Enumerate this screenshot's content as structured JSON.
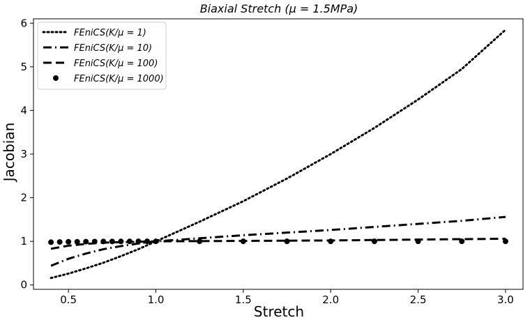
{
  "chart_data": {
    "type": "line",
    "title": "Biaxial Stretch (μ = 1.5MPa)",
    "xlabel": "Stretch",
    "ylabel": "Jacobian",
    "xlim": [
      0.3,
      3.1
    ],
    "ylim": [
      -0.1,
      6.1
    ],
    "xticks": [
      0.5,
      1.0,
      1.5,
      2.0,
      2.5,
      3.0
    ],
    "xtick_labels": [
      "0.5",
      "1.0",
      "1.5",
      "2.0",
      "2.5",
      "3.0"
    ],
    "yticks": [
      0,
      1,
      2,
      3,
      4,
      5,
      6
    ],
    "ytick_labels": [
      "0",
      "1",
      "2",
      "3",
      "4",
      "5",
      "6"
    ],
    "grid": false,
    "legend_position": "top-left",
    "series": [
      {
        "name": "FEniCS(K/μ = 1)",
        "style": "dotted",
        "x": [
          0.4,
          0.5,
          0.6,
          0.7,
          0.8,
          0.9,
          1.0,
          1.25,
          1.5,
          1.75,
          2.0,
          2.25,
          2.5,
          2.75,
          3.0
        ],
        "y": [
          0.16,
          0.26,
          0.38,
          0.51,
          0.66,
          0.82,
          1.0,
          1.45,
          1.92,
          2.44,
          3.0,
          3.6,
          4.25,
          4.95,
          5.85
        ]
      },
      {
        "name": "FEniCS(K/μ = 10)",
        "style": "dashdot",
        "x": [
          0.4,
          0.5,
          0.6,
          0.7,
          0.8,
          0.9,
          1.0,
          1.25,
          1.5,
          1.75,
          2.0,
          2.25,
          2.5,
          2.75,
          3.0
        ],
        "y": [
          0.44,
          0.6,
          0.72,
          0.82,
          0.89,
          0.95,
          1.0,
          1.07,
          1.14,
          1.2,
          1.26,
          1.33,
          1.4,
          1.47,
          1.56
        ]
      },
      {
        "name": "FEniCS(K/μ = 100)",
        "style": "dashed",
        "x": [
          0.4,
          0.5,
          0.6,
          0.7,
          0.8,
          0.9,
          1.0,
          1.5,
          2.0,
          2.5,
          3.0
        ],
        "y": [
          0.83,
          0.9,
          0.94,
          0.97,
          0.98,
          0.99,
          1.0,
          1.01,
          1.02,
          1.04,
          1.06
        ]
      },
      {
        "name": "FEniCS(K/μ = 1000)",
        "style": "markers",
        "x": [
          0.4,
          0.45,
          0.5,
          0.55,
          0.6,
          0.65,
          0.7,
          0.75,
          0.8,
          0.85,
          0.9,
          0.95,
          1.0,
          1.25,
          1.5,
          1.75,
          2.0,
          2.25,
          2.5,
          2.75,
          3.0
        ],
        "y": [
          0.98,
          0.985,
          0.99,
          0.99,
          0.993,
          0.995,
          0.996,
          0.997,
          0.998,
          0.999,
          1.0,
          1.0,
          1.0,
          1.0,
          1.0,
          1.0,
          1.0,
          1.0,
          1.0,
          1.0,
          1.0
        ]
      }
    ]
  }
}
